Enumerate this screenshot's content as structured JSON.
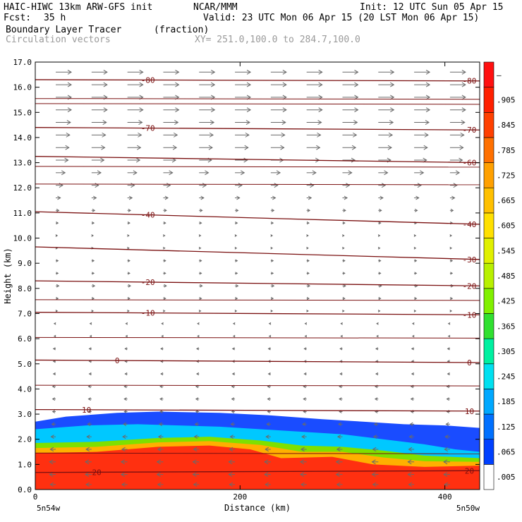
{
  "header": {
    "model": "HAIC-HIWC 13km ARW-GFS init",
    "org": "NCAR/MMM",
    "init": "Init: 12 UTC Sun 05 Apr 15",
    "fcst_label": "Fcst:",
    "fcst_value": "35 h",
    "valid": "Valid: 23 UTC Mon 06 Apr 15 (20 LST Mon 06 Apr 15)",
    "field": "Boundary Layer Tracer",
    "field_units": "(fraction)",
    "vectors": "Circulation vectors",
    "xy_range": "XY= 251.0,100.0 to 284.7,100.0"
  },
  "chart_data": {
    "type": "heatmap",
    "title": "Boundary Layer Tracer",
    "xlabel": "Distance (km)",
    "ylabel": "Height (km)",
    "xlim": [
      0,
      434
    ],
    "ylim": [
      0,
      17
    ],
    "x_ticks": [
      {
        "value": 0,
        "label": "0"
      },
      {
        "value": 200,
        "label": "200"
      },
      {
        "value": 400,
        "label": "400"
      }
    ],
    "x_end_labels": {
      "left": "5n54w",
      "right": "5n50w"
    },
    "y_ticks": [
      {
        "value": 0,
        "label": "0.0"
      },
      {
        "value": 1,
        "label": "1.0"
      },
      {
        "value": 2,
        "label": "2.0"
      },
      {
        "value": 3,
        "label": "3.0"
      },
      {
        "value": 4,
        "label": "4.0"
      },
      {
        "value": 5,
        "label": "5.0"
      },
      {
        "value": 6,
        "label": "6.0"
      },
      {
        "value": 7,
        "label": "7.0"
      },
      {
        "value": 8,
        "label": "8.0"
      },
      {
        "value": 9,
        "label": "9.0"
      },
      {
        "value": 10,
        "label": "10.0"
      },
      {
        "value": 11,
        "label": "11.0"
      },
      {
        "value": 12,
        "label": "12.0"
      },
      {
        "value": 13,
        "label": "13.0"
      },
      {
        "value": 14,
        "label": "14.0"
      },
      {
        "value": 15,
        "label": "15.0"
      },
      {
        "value": 16,
        "label": "16.0"
      },
      {
        "value": 17,
        "label": "17.0"
      }
    ],
    "colorbar": {
      "labels": [
        ".005",
        ".065",
        ".125",
        ".185",
        ".245",
        ".305",
        ".365",
        ".425",
        ".485",
        ".545",
        ".605",
        ".665",
        ".725",
        ".785",
        ".845",
        ".905",
        "–"
      ],
      "colors": [
        "#ffffff",
        "#0040ff",
        "#0070ff",
        "#00a8ff",
        "#00e0f0",
        "#00f0a0",
        "#30e030",
        "#80f000",
        "#b8f000",
        "#e0f000",
        "#ffe000",
        "#ffc000",
        "#ffa000",
        "#ff7000",
        "#ff4000",
        "#ff2000",
        "#ff1010"
      ]
    },
    "temperature_contours": {
      "units": "degC",
      "levels": [
        {
          "label": "20",
          "y_left": 0.68,
          "y_right": 0.75,
          "labels_x": [
            60,
            440
          ]
        },
        {
          "label": "10",
          "y_left": 3.18,
          "y_right": 3.12,
          "labels_x": [
            50,
            440
          ]
        },
        {
          "label": "0",
          "y_left": 5.15,
          "y_right": 5.05,
          "labels_x": [
            80,
            440
          ]
        },
        {
          "label": "-10",
          "y_left": 7.05,
          "y_right": 6.95,
          "labels_x": [
            110,
            440
          ]
        },
        {
          "label": "-20",
          "y_left": 8.3,
          "y_right": 8.1,
          "labels_x": [
            110,
            440
          ]
        },
        {
          "label": "-30",
          "y_left": 9.65,
          "y_right": 9.15,
          "labels_x": [
            480
          ]
        },
        {
          "label": "-40",
          "y_left": 11.05,
          "y_right": 10.55,
          "labels_x": [
            110,
            500
          ]
        },
        {
          "label": "-60",
          "y_left": 13.25,
          "y_right": 13.0,
          "labels_x": [
            470
          ]
        },
        {
          "label": "-70",
          "y_left": 14.4,
          "y_right": 14.3,
          "labels_x": [
            110,
            470
          ]
        },
        {
          "label": "-80",
          "y_left": 16.3,
          "y_right": 16.25,
          "labels_x": [
            110,
            470
          ]
        }
      ],
      "extra_lines_y": [
        1.45,
        4.15,
        6.05,
        7.55,
        12.15,
        12.85,
        15.35,
        15.55
      ]
    },
    "tracer_layer": {
      "top_km": [
        [
          0,
          2.7
        ],
        [
          30,
          2.9
        ],
        [
          80,
          3.05
        ],
        [
          120,
          3.1
        ],
        [
          180,
          3.05
        ],
        [
          230,
          2.95
        ],
        [
          280,
          2.8
        ],
        [
          320,
          2.7
        ],
        [
          360,
          2.6
        ],
        [
          400,
          2.55
        ],
        [
          434,
          2.45
        ]
      ],
      "blue_to_green_km": [
        [
          0,
          2.4
        ],
        [
          50,
          2.55
        ],
        [
          100,
          2.6
        ],
        [
          140,
          2.55
        ],
        [
          180,
          2.5
        ],
        [
          240,
          2.35
        ],
        [
          300,
          2.2
        ],
        [
          340,
          2.0
        ],
        [
          380,
          1.8
        ],
        [
          410,
          1.6
        ],
        [
          434,
          1.5
        ]
      ],
      "mixed_top_km": [
        [
          0,
          1.85
        ],
        [
          60,
          1.9
        ],
        [
          120,
          2.05
        ],
        [
          170,
          2.1
        ],
        [
          220,
          1.95
        ],
        [
          260,
          1.75
        ],
        [
          300,
          1.7
        ],
        [
          340,
          1.55
        ],
        [
          380,
          1.35
        ],
        [
          434,
          1.25
        ]
      ],
      "red_top_km": [
        [
          0,
          1.45
        ],
        [
          60,
          1.5
        ],
        [
          120,
          1.7
        ],
        [
          170,
          1.75
        ],
        [
          210,
          1.6
        ],
        [
          240,
          1.25
        ],
        [
          290,
          1.3
        ],
        [
          330,
          1.0
        ],
        [
          380,
          0.9
        ],
        [
          434,
          0.95
        ]
      ]
    },
    "vectors": {
      "x_km": [
        20,
        55,
        90,
        125,
        160,
        195,
        230,
        265,
        300,
        335,
        370,
        405
      ],
      "rows": [
        {
          "y": 16.6,
          "u": 1.0
        },
        {
          "y": 16.1,
          "u": 1.0
        },
        {
          "y": 15.6,
          "u": 1.0
        },
        {
          "y": 15.1,
          "u": 1.0
        },
        {
          "y": 14.6,
          "u": 0.95
        },
        {
          "y": 14.1,
          "u": 0.9
        },
        {
          "y": 13.6,
          "u": 0.85
        },
        {
          "y": 13.1,
          "u": 0.8
        },
        {
          "y": 12.6,
          "u": 0.6
        },
        {
          "y": 12.1,
          "u": 0.45
        },
        {
          "y": 11.6,
          "u": 0.3
        },
        {
          "y": 11.1,
          "u": 0.2
        },
        {
          "y": 10.6,
          "u": 0.15
        },
        {
          "y": 10.1,
          "u": 0.1
        },
        {
          "y": 9.6,
          "u": 0.1
        },
        {
          "y": 9.1,
          "u": 0.15
        },
        {
          "y": 8.6,
          "u": 0.15
        },
        {
          "y": 8.1,
          "u": 0.2
        },
        {
          "y": 7.6,
          "u": 0.15
        },
        {
          "y": 7.1,
          "u": 0.1
        },
        {
          "y": 6.6,
          "u": -0.1
        },
        {
          "y": 6.1,
          "u": -0.1
        },
        {
          "y": 5.6,
          "u": -0.15
        },
        {
          "y": 5.1,
          "u": -0.15
        },
        {
          "y": 4.6,
          "u": -0.15
        },
        {
          "y": 4.1,
          "u": -0.2
        },
        {
          "y": 3.6,
          "u": -0.2
        },
        {
          "y": 3.1,
          "u": -0.2
        },
        {
          "y": 2.6,
          "u": -0.25
        },
        {
          "y": 2.1,
          "u": -0.3
        },
        {
          "y": 1.6,
          "u": -0.35
        },
        {
          "y": 1.1,
          "u": -0.4
        },
        {
          "y": 0.6,
          "u": -0.4
        },
        {
          "y": 0.2,
          "u": -0.35
        }
      ]
    }
  }
}
